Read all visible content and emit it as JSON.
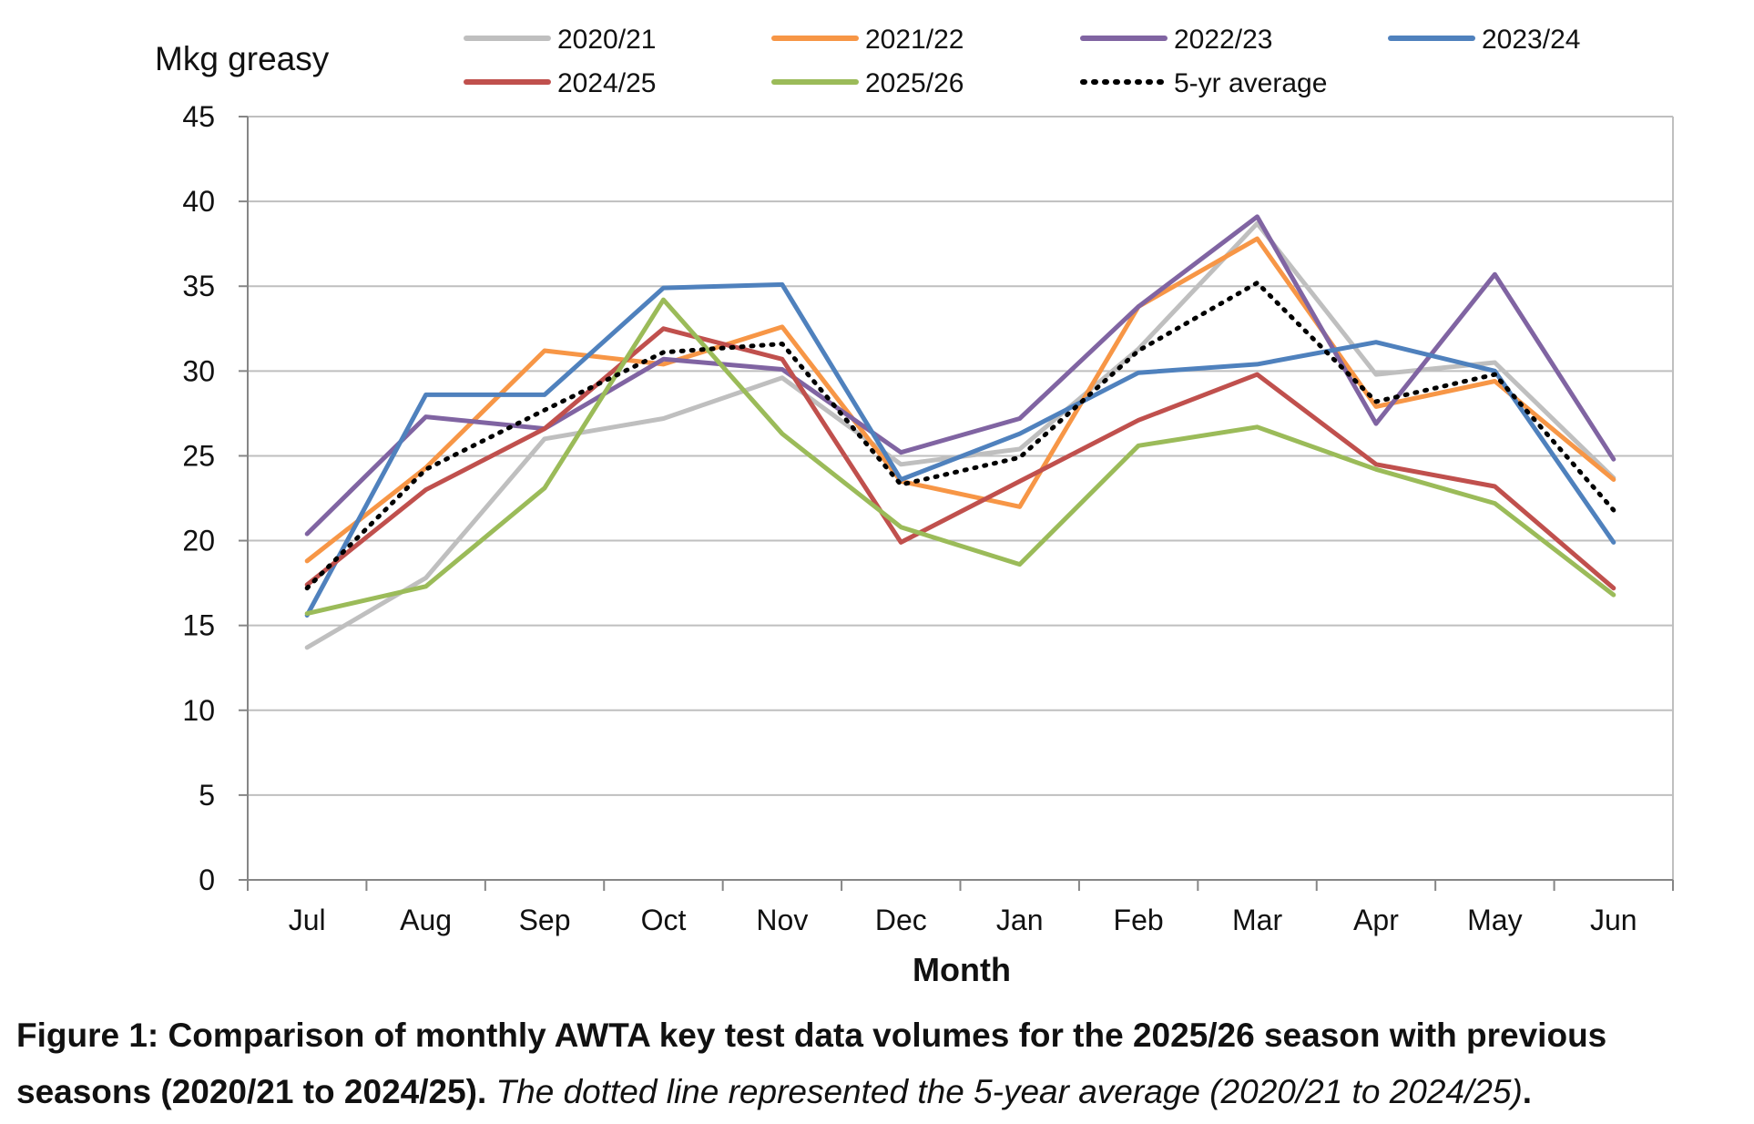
{
  "chart_data": {
    "type": "line",
    "ylabel": "Mkg greasy",
    "xlabel": "Month",
    "ylim": [
      0,
      45
    ],
    "yticks": [
      0,
      5,
      10,
      15,
      20,
      25,
      30,
      35,
      40,
      45
    ],
    "categories": [
      "Jul",
      "Aug",
      "Sep",
      "Oct",
      "Nov",
      "Dec",
      "Jan",
      "Feb",
      "Mar",
      "Apr",
      "May",
      "Jun"
    ],
    "grid": "horizontal",
    "legend_position": "top",
    "series": [
      {
        "name": "2020/21",
        "color": "#bfbfbf",
        "style": "solid",
        "values": [
          13.7,
          17.8,
          26.0,
          27.2,
          29.6,
          24.5,
          25.4,
          31.3,
          38.7,
          29.8,
          30.5,
          23.7
        ]
      },
      {
        "name": "2021/22",
        "color": "#f79646",
        "style": "solid",
        "values": [
          18.8,
          24.3,
          31.2,
          30.4,
          32.6,
          23.5,
          22.0,
          33.8,
          37.8,
          27.9,
          29.4,
          23.6
        ]
      },
      {
        "name": "2022/23",
        "color": "#8064a2",
        "style": "solid",
        "values": [
          20.4,
          27.3,
          26.6,
          30.7,
          30.1,
          25.2,
          27.2,
          33.8,
          39.1,
          26.9,
          35.7,
          24.8
        ]
      },
      {
        "name": "2023/24",
        "color": "#4f81bd",
        "style": "solid",
        "values": [
          15.6,
          28.6,
          28.6,
          34.9,
          35.1,
          23.6,
          26.3,
          29.9,
          30.4,
          31.7,
          30.0,
          19.9
        ]
      },
      {
        "name": "2024/25",
        "color": "#c0504d",
        "style": "solid",
        "values": [
          17.4,
          23.0,
          26.6,
          32.5,
          30.7,
          19.9,
          23.5,
          27.1,
          29.8,
          24.5,
          23.2,
          17.2
        ]
      },
      {
        "name": "2025/26",
        "color": "#9bbb59",
        "style": "solid",
        "values": [
          15.7,
          17.3,
          23.1,
          34.2,
          26.3,
          20.8,
          18.6,
          25.6,
          26.7,
          24.2,
          22.2,
          16.8
        ]
      },
      {
        "name": "5-yr average",
        "color": "#000000",
        "style": "dotted",
        "values": [
          17.2,
          24.2,
          27.7,
          31.1,
          31.6,
          23.3,
          24.9,
          31.2,
          35.2,
          28.2,
          29.8,
          21.8
        ]
      }
    ]
  },
  "caption": {
    "bold": "Figure 1: Comparison of monthly AWTA key test data volumes for the 2025/26 season with previous seasons (2020/21 to 2024/25).",
    "italic": "The dotted line represented the 5-year average (2020/21 to 2024/25)",
    "end": "."
  }
}
